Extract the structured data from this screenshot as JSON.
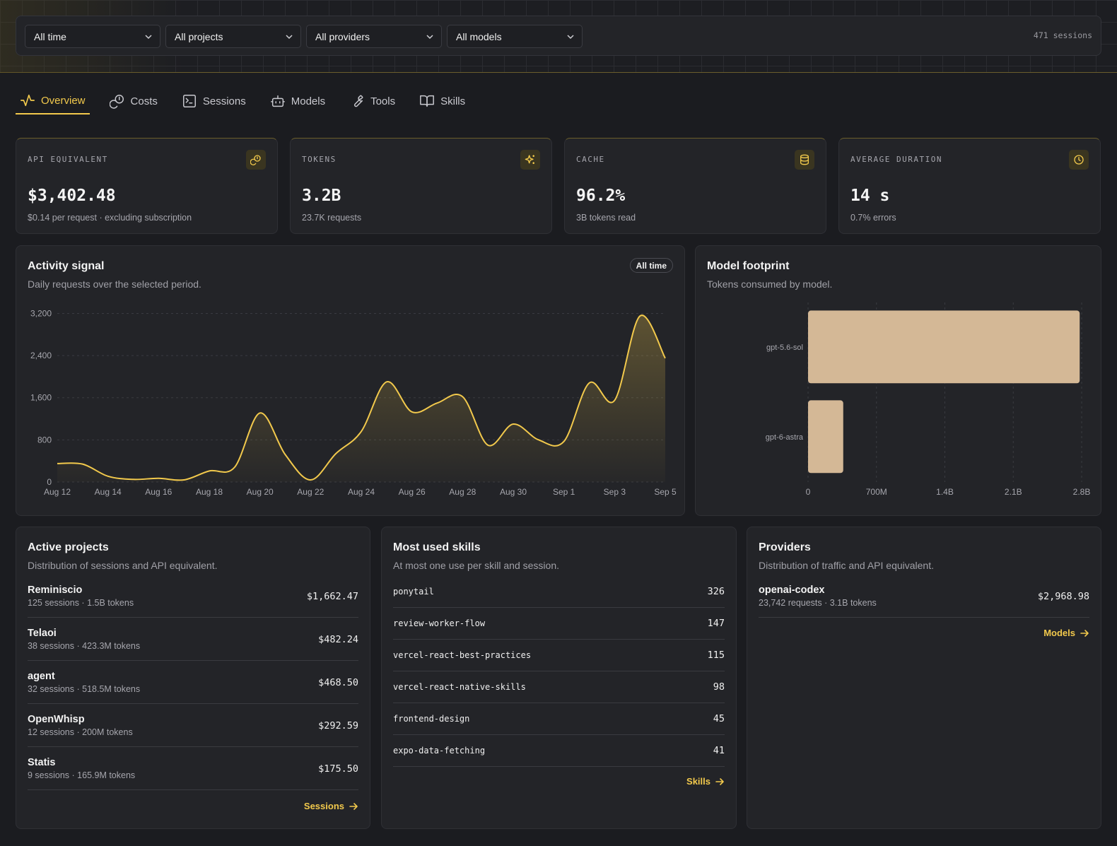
{
  "filters": {
    "time": "All time",
    "projects": "All projects",
    "providers": "All providers",
    "models": "All models",
    "session_count": "471 sessions"
  },
  "tabs": [
    {
      "label": "Overview",
      "icon": "activity-icon",
      "active": true
    },
    {
      "label": "Costs",
      "icon": "coins-icon"
    },
    {
      "label": "Sessions",
      "icon": "terminal-icon"
    },
    {
      "label": "Models",
      "icon": "bot-icon"
    },
    {
      "label": "Tools",
      "icon": "wrench-icon"
    },
    {
      "label": "Skills",
      "icon": "book-open-icon"
    }
  ],
  "stats": [
    {
      "label": "API EQUIVALENT",
      "value": "$3,402.48",
      "sub": "$0.14 per request · excluding subscription",
      "icon": "coins-icon"
    },
    {
      "label": "TOKENS",
      "value": "3.2B",
      "sub": "23.7K requests",
      "icon": "sparkles-icon"
    },
    {
      "label": "CACHE",
      "value": "96.2%",
      "sub": "3B tokens read",
      "icon": "database-icon"
    },
    {
      "label": "AVERAGE DURATION",
      "value": "14 s",
      "sub": "0.7% errors",
      "icon": "clock-icon"
    }
  ],
  "activity": {
    "title": "Activity signal",
    "subtitle": "Daily requests over the selected period.",
    "badge": "All time"
  },
  "footprint": {
    "title": "Model footprint",
    "subtitle": "Tokens consumed by model."
  },
  "chart_data": [
    {
      "type": "area",
      "x_tick_labels": [
        "Aug 12",
        "Aug 14",
        "Aug 16",
        "Aug 18",
        "Aug 20",
        "Aug 22",
        "Aug 24",
        "Aug 26",
        "Aug 28",
        "Aug 30",
        "Sep 1",
        "Sep 3",
        "Sep 5"
      ],
      "y_tick_labels": [
        "0",
        "800",
        "1,600",
        "2,400",
        "3,200"
      ],
      "ylim": [
        0,
        3300
      ],
      "grid": true,
      "x": [
        "Aug 12",
        "Aug 13",
        "Aug 14",
        "Aug 15",
        "Aug 16",
        "Aug 17",
        "Aug 18",
        "Aug 19",
        "Aug 20",
        "Aug 21",
        "Aug 22",
        "Aug 23",
        "Aug 24",
        "Aug 25",
        "Aug 26",
        "Aug 27",
        "Aug 28",
        "Aug 29",
        "Aug 30",
        "Aug 31",
        "Sep 1",
        "Sep 2",
        "Sep 3",
        "Sep 4",
        "Sep 5"
      ],
      "values": [
        350,
        340,
        110,
        50,
        70,
        40,
        210,
        280,
        1310,
        520,
        40,
        540,
        960,
        1900,
        1330,
        1500,
        1620,
        700,
        1100,
        800,
        770,
        1880,
        1550,
        3150,
        2350
      ],
      "color": "#f2c94c"
    },
    {
      "type": "bar",
      "orientation": "horizontal",
      "categories": [
        "gpt-5.6-sol",
        "gpt-6-astra"
      ],
      "values": [
        2.78,
        0.36
      ],
      "units": "B tokens",
      "x_tick_labels": [
        "0",
        "700M",
        "1.4B",
        "2.1B",
        "2.8B"
      ],
      "xlim": [
        0,
        2.8
      ],
      "grid": true,
      "color": "#d4b896"
    }
  ],
  "projects": {
    "title": "Active projects",
    "subtitle": "Distribution of sessions and API equivalent.",
    "items": [
      {
        "name": "Reminiscio",
        "meta": "125 sessions · 1.5B tokens",
        "cost": "$1,662.47"
      },
      {
        "name": "Telaoi",
        "meta": "38 sessions · 423.3M tokens",
        "cost": "$482.24"
      },
      {
        "name": "agent",
        "meta": "32 sessions · 518.5M tokens",
        "cost": "$468.50"
      },
      {
        "name": "OpenWhisp",
        "meta": "12 sessions · 200M tokens",
        "cost": "$292.59"
      },
      {
        "name": "Statis",
        "meta": "9 sessions · 165.9M tokens",
        "cost": "$175.50"
      }
    ],
    "link": "Sessions"
  },
  "skills": {
    "title": "Most used skills",
    "subtitle": "At most one use per skill and session.",
    "items": [
      {
        "name": "ponytail",
        "count": "326"
      },
      {
        "name": "review-worker-flow",
        "count": "147"
      },
      {
        "name": "vercel-react-best-practices",
        "count": "115"
      },
      {
        "name": "vercel-react-native-skills",
        "count": "98"
      },
      {
        "name": "frontend-design",
        "count": "45"
      },
      {
        "name": "expo-data-fetching",
        "count": "41"
      }
    ],
    "link": "Skills"
  },
  "providers": {
    "title": "Providers",
    "subtitle": "Distribution of traffic and API equivalent.",
    "items": [
      {
        "name": "openai-codex",
        "meta": "23,742 requests · 3.1B tokens",
        "cost": "$2,968.98"
      }
    ],
    "link": "Models"
  },
  "colors": {
    "accent": "#f2c94c",
    "bar": "#d4b896",
    "background": "#1b1c20",
    "card": "#232428"
  }
}
